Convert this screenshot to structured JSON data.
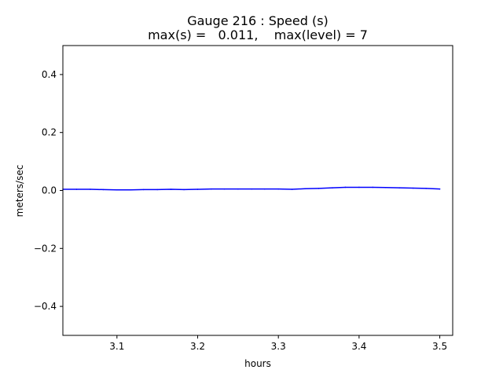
{
  "chart_data": {
    "type": "line",
    "title": "Gauge 216 : Speed (s)",
    "subtitle": "max(s) =   0.011,    max(level) = 7",
    "xlabel": "hours",
    "ylabel": "meters/sec",
    "xlim": [
      3.033,
      3.516
    ],
    "ylim": [
      -0.5,
      0.5
    ],
    "xticks": [
      3.1,
      3.2,
      3.3,
      3.4,
      3.5
    ],
    "xtick_labels": [
      "3.1",
      "3.2",
      "3.3",
      "3.4",
      "3.5"
    ],
    "yticks": [
      -0.4,
      -0.2,
      0.0,
      0.2,
      0.4
    ],
    "ytick_labels": [
      "−0.4",
      "−0.2",
      "0.0",
      "0.2",
      "0.4"
    ],
    "grid": false,
    "series": [
      {
        "color": "#0000ff",
        "x": [
          3.033,
          3.05,
          3.067,
          3.083,
          3.1,
          3.117,
          3.133,
          3.15,
          3.167,
          3.183,
          3.2,
          3.217,
          3.233,
          3.25,
          3.267,
          3.283,
          3.3,
          3.317,
          3.333,
          3.35,
          3.367,
          3.383,
          3.4,
          3.417,
          3.433,
          3.45,
          3.467,
          3.483,
          3.5
        ],
        "y": [
          0.004,
          0.004,
          0.004,
          0.003,
          0.002,
          0.002,
          0.003,
          0.003,
          0.004,
          0.003,
          0.004,
          0.005,
          0.005,
          0.005,
          0.005,
          0.005,
          0.005,
          0.004,
          0.006,
          0.007,
          0.009,
          0.011,
          0.011,
          0.011,
          0.01,
          0.009,
          0.008,
          0.007,
          0.005
        ]
      }
    ]
  }
}
